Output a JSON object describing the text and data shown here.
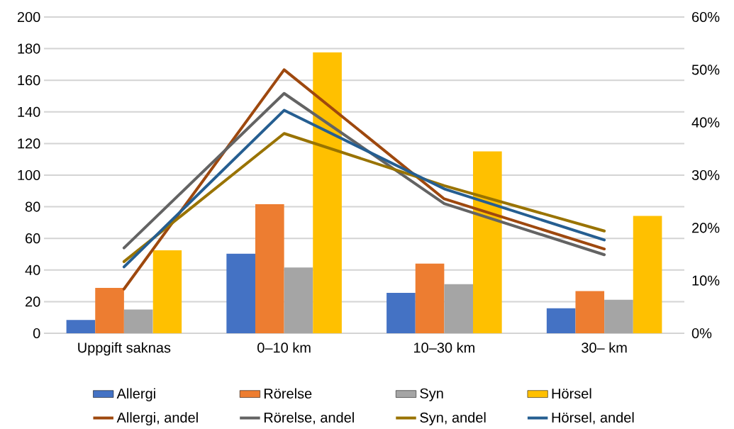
{
  "chart_data": {
    "type": "bar",
    "categories": [
      "Uppgift saknas",
      "0–10 km",
      "10–30 km",
      "30– km"
    ],
    "series": [
      {
        "name": "Allergi",
        "color": "#4472c4",
        "values": [
          8.4,
          50.3,
          25.6,
          15.8
        ]
      },
      {
        "name": "Rörelse",
        "color": "#ed7d31",
        "values": [
          28.7,
          81.7,
          44,
          26.7
        ]
      },
      {
        "name": "Syn",
        "color": "#a5a5a5",
        "values": [
          15,
          41.6,
          31,
          21.2
        ]
      },
      {
        "name": "Hörsel",
        "color": "#ffc000",
        "values": [
          52.5,
          177.7,
          115,
          74.2
        ]
      },
      {
        "name": "Allergi, andel",
        "type": "line",
        "axis": "y2",
        "color": "#9e480e",
        "values": [
          8.4,
          50.0,
          25.5,
          16.0
        ]
      },
      {
        "name": "Rörelse, andel",
        "type": "line",
        "axis": "y2",
        "color": "#636363",
        "values": [
          16.2,
          45.5,
          24.6,
          14.9
        ]
      },
      {
        "name": "Syn, andel",
        "type": "line",
        "axis": "y2",
        "color": "#997300",
        "values": [
          13.6,
          37.9,
          28.0,
          19.4
        ]
      },
      {
        "name": "Hörsel, andel",
        "type": "line",
        "axis": "y2",
        "color": "#255e91",
        "values": [
          12.6,
          42.3,
          27.4,
          17.7
        ]
      }
    ],
    "ylim": [
      0,
      200
    ],
    "yticks": [
      0,
      20,
      40,
      60,
      80,
      100,
      120,
      140,
      160,
      180,
      200
    ],
    "y2lim": [
      0,
      60
    ],
    "y2ticks": [
      {
        "value": 0,
        "label": "0%"
      },
      {
        "value": 10,
        "label": "10%"
      },
      {
        "value": 20,
        "label": "20%"
      },
      {
        "value": 30,
        "label": "30%"
      },
      {
        "value": 40,
        "label": "40%"
      },
      {
        "value": 50,
        "label": "50%"
      },
      {
        "value": 60,
        "label": "60%"
      }
    ],
    "grid": "y",
    "legend": "bottom"
  }
}
